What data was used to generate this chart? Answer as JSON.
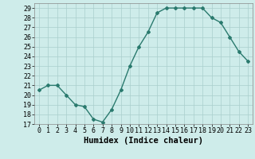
{
  "x": [
    0,
    1,
    2,
    3,
    4,
    5,
    6,
    7,
    8,
    9,
    10,
    11,
    12,
    13,
    14,
    15,
    16,
    17,
    18,
    19,
    20,
    21,
    22,
    23
  ],
  "y": [
    20.5,
    21.0,
    21.0,
    20.0,
    19.0,
    18.8,
    17.5,
    17.2,
    18.5,
    20.5,
    23.0,
    25.0,
    26.5,
    28.5,
    29.0,
    29.0,
    29.0,
    29.0,
    29.0,
    28.0,
    27.5,
    26.0,
    24.5,
    23.5
  ],
  "xlabel": "Humidex (Indice chaleur)",
  "ylim": [
    17,
    29.5
  ],
  "xlim": [
    -0.5,
    23.5
  ],
  "yticks": [
    17,
    18,
    19,
    20,
    21,
    22,
    23,
    24,
    25,
    26,
    27,
    28,
    29
  ],
  "xticks": [
    0,
    1,
    2,
    3,
    4,
    5,
    6,
    7,
    8,
    9,
    10,
    11,
    12,
    13,
    14,
    15,
    16,
    17,
    18,
    19,
    20,
    21,
    22,
    23
  ],
  "line_color": "#2a7a6e",
  "marker": "D",
  "marker_size": 2.0,
  "bg_color": "#ceecea",
  "grid_color": "#aacfcc",
  "fig_bg": "#ceecea",
  "xlabel_fontsize": 7.5,
  "tick_fontsize": 6.0,
  "line_width": 1.0
}
